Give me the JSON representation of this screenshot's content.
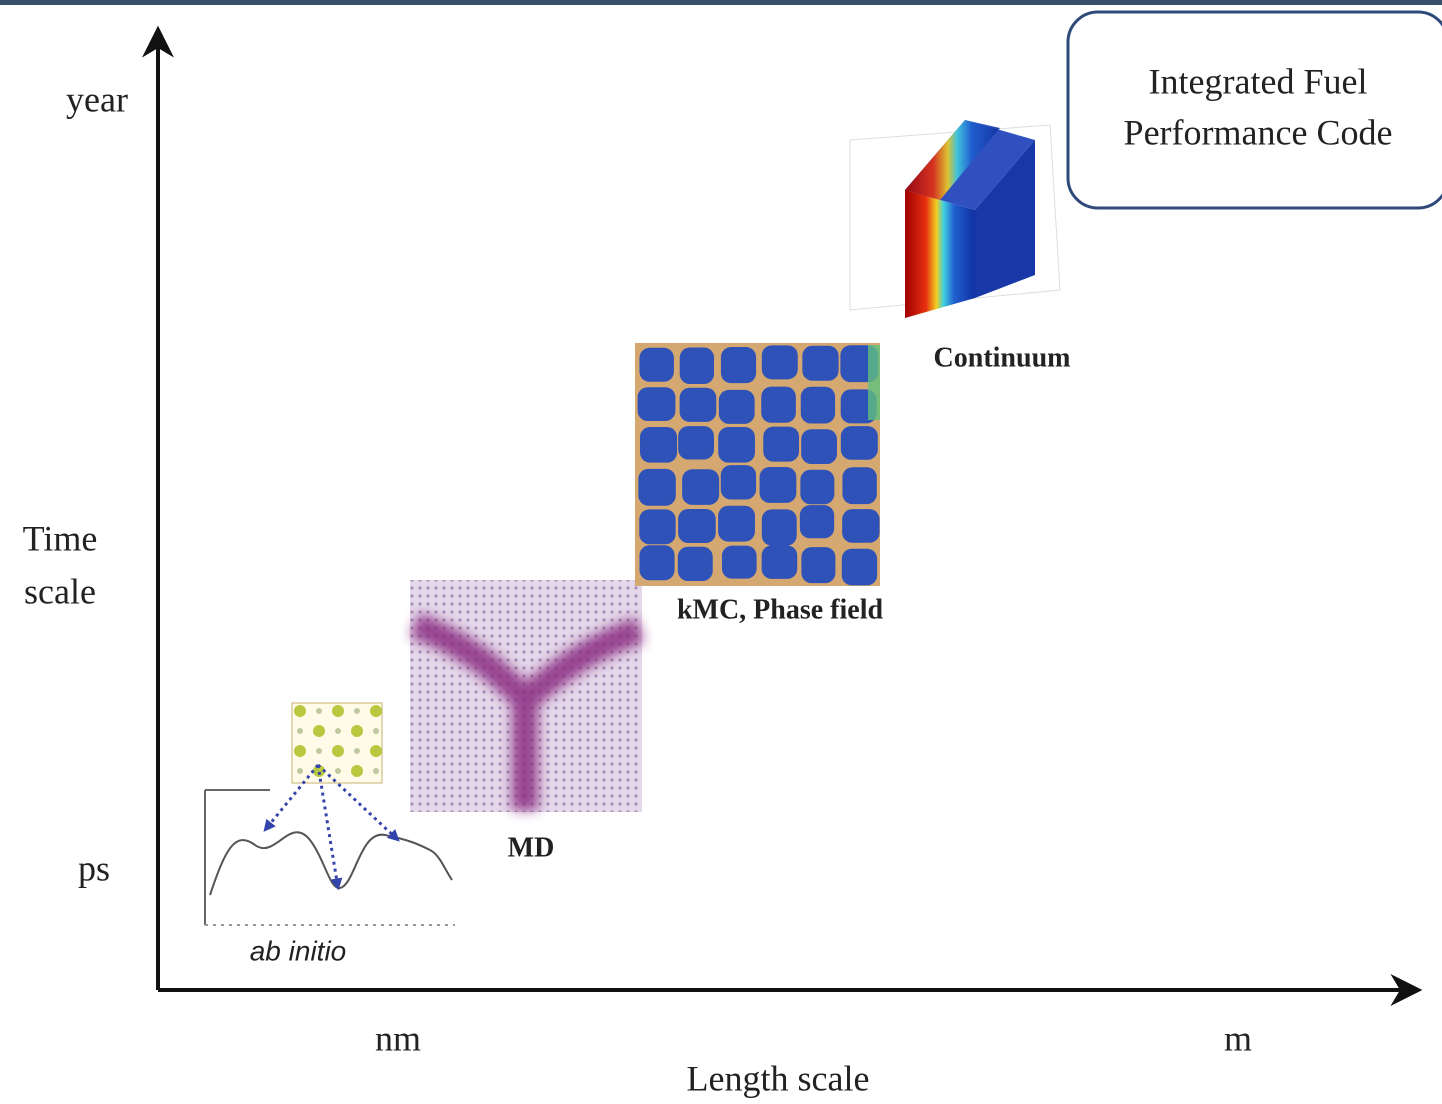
{
  "axes": {
    "y_labels": {
      "top": "year",
      "middle": [
        "Time",
        "scale"
      ],
      "bottom": "ps"
    },
    "x_labels": {
      "left": "nm",
      "right": "m"
    },
    "x_title": "Length scale"
  },
  "box": {
    "lines": [
      "Integrated Fuel",
      "Performance Code"
    ]
  },
  "methods": [
    {
      "label": "ab initio"
    },
    {
      "label": "MD"
    },
    {
      "label": "kMC, Phase field"
    },
    {
      "label": "Continuum"
    }
  ]
}
